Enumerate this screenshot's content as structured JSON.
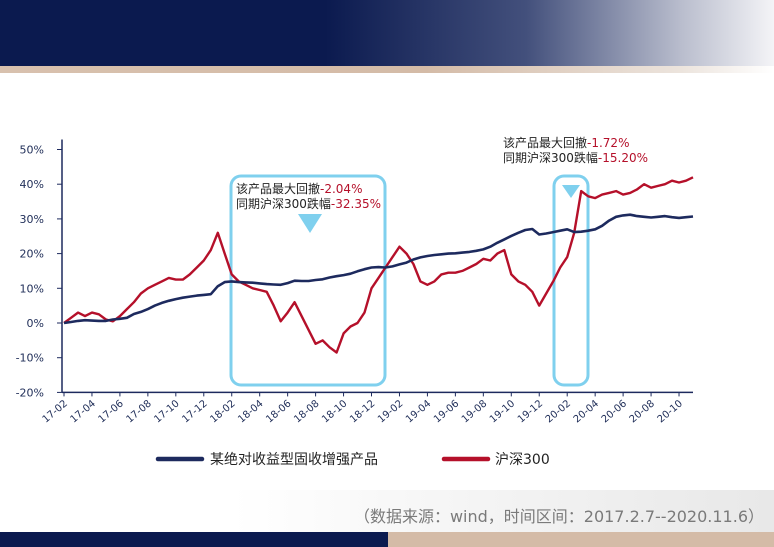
{
  "source_note": "（数据来源：wind，时间区间：2017.2.7--2020.11.6）",
  "colors": {
    "navy": "#1d2a5e",
    "red": "#b5102a",
    "highlight": "#7fd0ee"
  },
  "chart_data": {
    "type": "line",
    "title": "",
    "xlabel": "",
    "ylabel": "",
    "ylim": [
      -20,
      50
    ],
    "yticks": [
      -20,
      -10,
      0,
      10,
      20,
      30,
      40,
      50
    ],
    "ytick_labels": [
      "-20%",
      "-10%",
      "0%",
      "10%",
      "20%",
      "30%",
      "40%",
      "50%"
    ],
    "xtick_labels": [
      "17-02",
      "17-04",
      "17-06",
      "17-08",
      "17-10",
      "17-12",
      "18-02",
      "18-04",
      "18-06",
      "18-08",
      "18-10",
      "18-12",
      "19-02",
      "19-04",
      "19-06",
      "19-08",
      "19-10",
      "19-12",
      "20-02",
      "20-04",
      "20-06",
      "20-08",
      "20-10"
    ],
    "grid": false,
    "legend_position": "bottom",
    "x": [
      0,
      0.5,
      1,
      1.5,
      2,
      2.5,
      3,
      3.5,
      4,
      4.5,
      5,
      5.5,
      6,
      6.5,
      7,
      7.5,
      8,
      8.5,
      9,
      9.5,
      10,
      10.5,
      11,
      11.5,
      12,
      12.5,
      13,
      13.5,
      14,
      14.5,
      15,
      15.5,
      16,
      16.5,
      17,
      17.5,
      18,
      18.5,
      19,
      19.5,
      20,
      20.5,
      21,
      21.5,
      22,
      22.5,
      23,
      23.5,
      24,
      24.5,
      25,
      25.5,
      26,
      26.5,
      27,
      27.5,
      28,
      28.5,
      29,
      29.5,
      30,
      30.5,
      31,
      31.5,
      32,
      32.5,
      33,
      33.5,
      34,
      34.5,
      35,
      35.5,
      36,
      36.5,
      37,
      37.5,
      38,
      38.5,
      39,
      39.5,
      40,
      40.5,
      41,
      41.5,
      42,
      42.5,
      43,
      43.5,
      44,
      44.5,
      45
    ],
    "series": [
      {
        "name": "某绝对收益型固收增强产品",
        "color": "#1d2a5e",
        "values": [
          0.0,
          0.3,
          0.6,
          0.8,
          0.7,
          0.6,
          0.6,
          1.0,
          1.2,
          1.5,
          2.6,
          3.2,
          4.0,
          5.0,
          5.8,
          6.4,
          6.9,
          7.3,
          7.6,
          7.9,
          8.1,
          8.3,
          10.6,
          11.8,
          12.0,
          11.8,
          11.7,
          11.6,
          11.4,
          11.2,
          11.1,
          11.0,
          11.5,
          12.2,
          12.1,
          12.1,
          12.4,
          12.6,
          13.1,
          13.5,
          13.8,
          14.2,
          14.9,
          15.5,
          16.0,
          16.1,
          16.0,
          16.3,
          16.9,
          17.4,
          18.3,
          18.9,
          19.3,
          19.6,
          19.8,
          20.0,
          20.1,
          20.3,
          20.5,
          20.8,
          21.2,
          22.0,
          23.1,
          24.1,
          25.1,
          26.0,
          26.8,
          27.1,
          25.5,
          25.8,
          26.2,
          26.6,
          27.0,
          26.2,
          26.3,
          26.6,
          27.0,
          28.0,
          29.5,
          30.6,
          31.0,
          31.2,
          30.8,
          30.6,
          30.4,
          30.6,
          30.8,
          30.5,
          30.3,
          30.5,
          30.7
        ]
      },
      {
        "name": "沪深300",
        "color": "#b5102a",
        "values": [
          0.0,
          1.5,
          3.0,
          2.0,
          3.0,
          2.5,
          1.0,
          0.5,
          2.0,
          4.0,
          6.0,
          8.5,
          10.0,
          11.0,
          12.0,
          13.0,
          12.5,
          12.5,
          14.0,
          16.0,
          18.0,
          21.0,
          26.0,
          20.0,
          14.0,
          12.0,
          11.0,
          10.0,
          9.5,
          9.0,
          5.0,
          0.5,
          3.0,
          6.0,
          2.0,
          -2.0,
          -6.0,
          -5.0,
          -7.0,
          -8.5,
          -3.0,
          -1.0,
          0.0,
          3.0,
          10.0,
          13.0,
          16.0,
          19.0,
          22.0,
          20.0,
          17.0,
          12.0,
          11.0,
          12.0,
          14.0,
          14.5,
          14.5,
          15.0,
          16.0,
          17.0,
          18.5,
          18.0,
          20.0,
          21.0,
          14.0,
          12.0,
          11.0,
          9.0,
          5.0,
          8.5,
          12.0,
          16.0,
          19.0,
          26.0,
          38.0,
          36.5,
          36.0,
          37.0,
          37.5,
          38.0,
          37.0,
          37.5,
          38.5,
          40.0,
          39.0,
          39.5,
          40.0,
          41.0,
          40.5,
          41.0,
          42.0
        ]
      }
    ],
    "annotations": [
      {
        "line1": "该产品最大回撤",
        "value1": "-2.04%",
        "line2": "同期沪深300跌幅",
        "value2": "-32.35%"
      },
      {
        "line1": "该产品最大回撤",
        "value1": "-1.72%",
        "line2": "同期沪深300跌幅",
        "value2": "-15.20%"
      }
    ]
  }
}
